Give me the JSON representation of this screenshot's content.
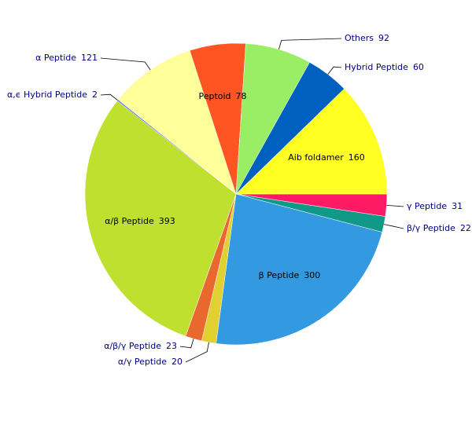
{
  "chart_data": {
    "type": "pie",
    "categories": [
      "γ Peptide",
      "β/γ Peptide",
      "β Peptide",
      "α/γ Peptide",
      "α/β/γ Peptide",
      "α/β Peptide",
      "α,ϵ Hybrid Peptide",
      "α Peptide",
      "Peptoid",
      "Others",
      "Hybrid Peptide",
      "Aib foldamer"
    ],
    "values": [
      31,
      22,
      300,
      20,
      23,
      393,
      2,
      121,
      78,
      92,
      60,
      160
    ],
    "colors": [
      "#ff1a66",
      "#119988",
      "#3399e0",
      "#e0d030",
      "#e86830",
      "#c0e030",
      "#6677ee",
      "#ffff99",
      "#ff5522",
      "#99ee66",
      "#0060c0",
      "#ffff22"
    ]
  }
}
